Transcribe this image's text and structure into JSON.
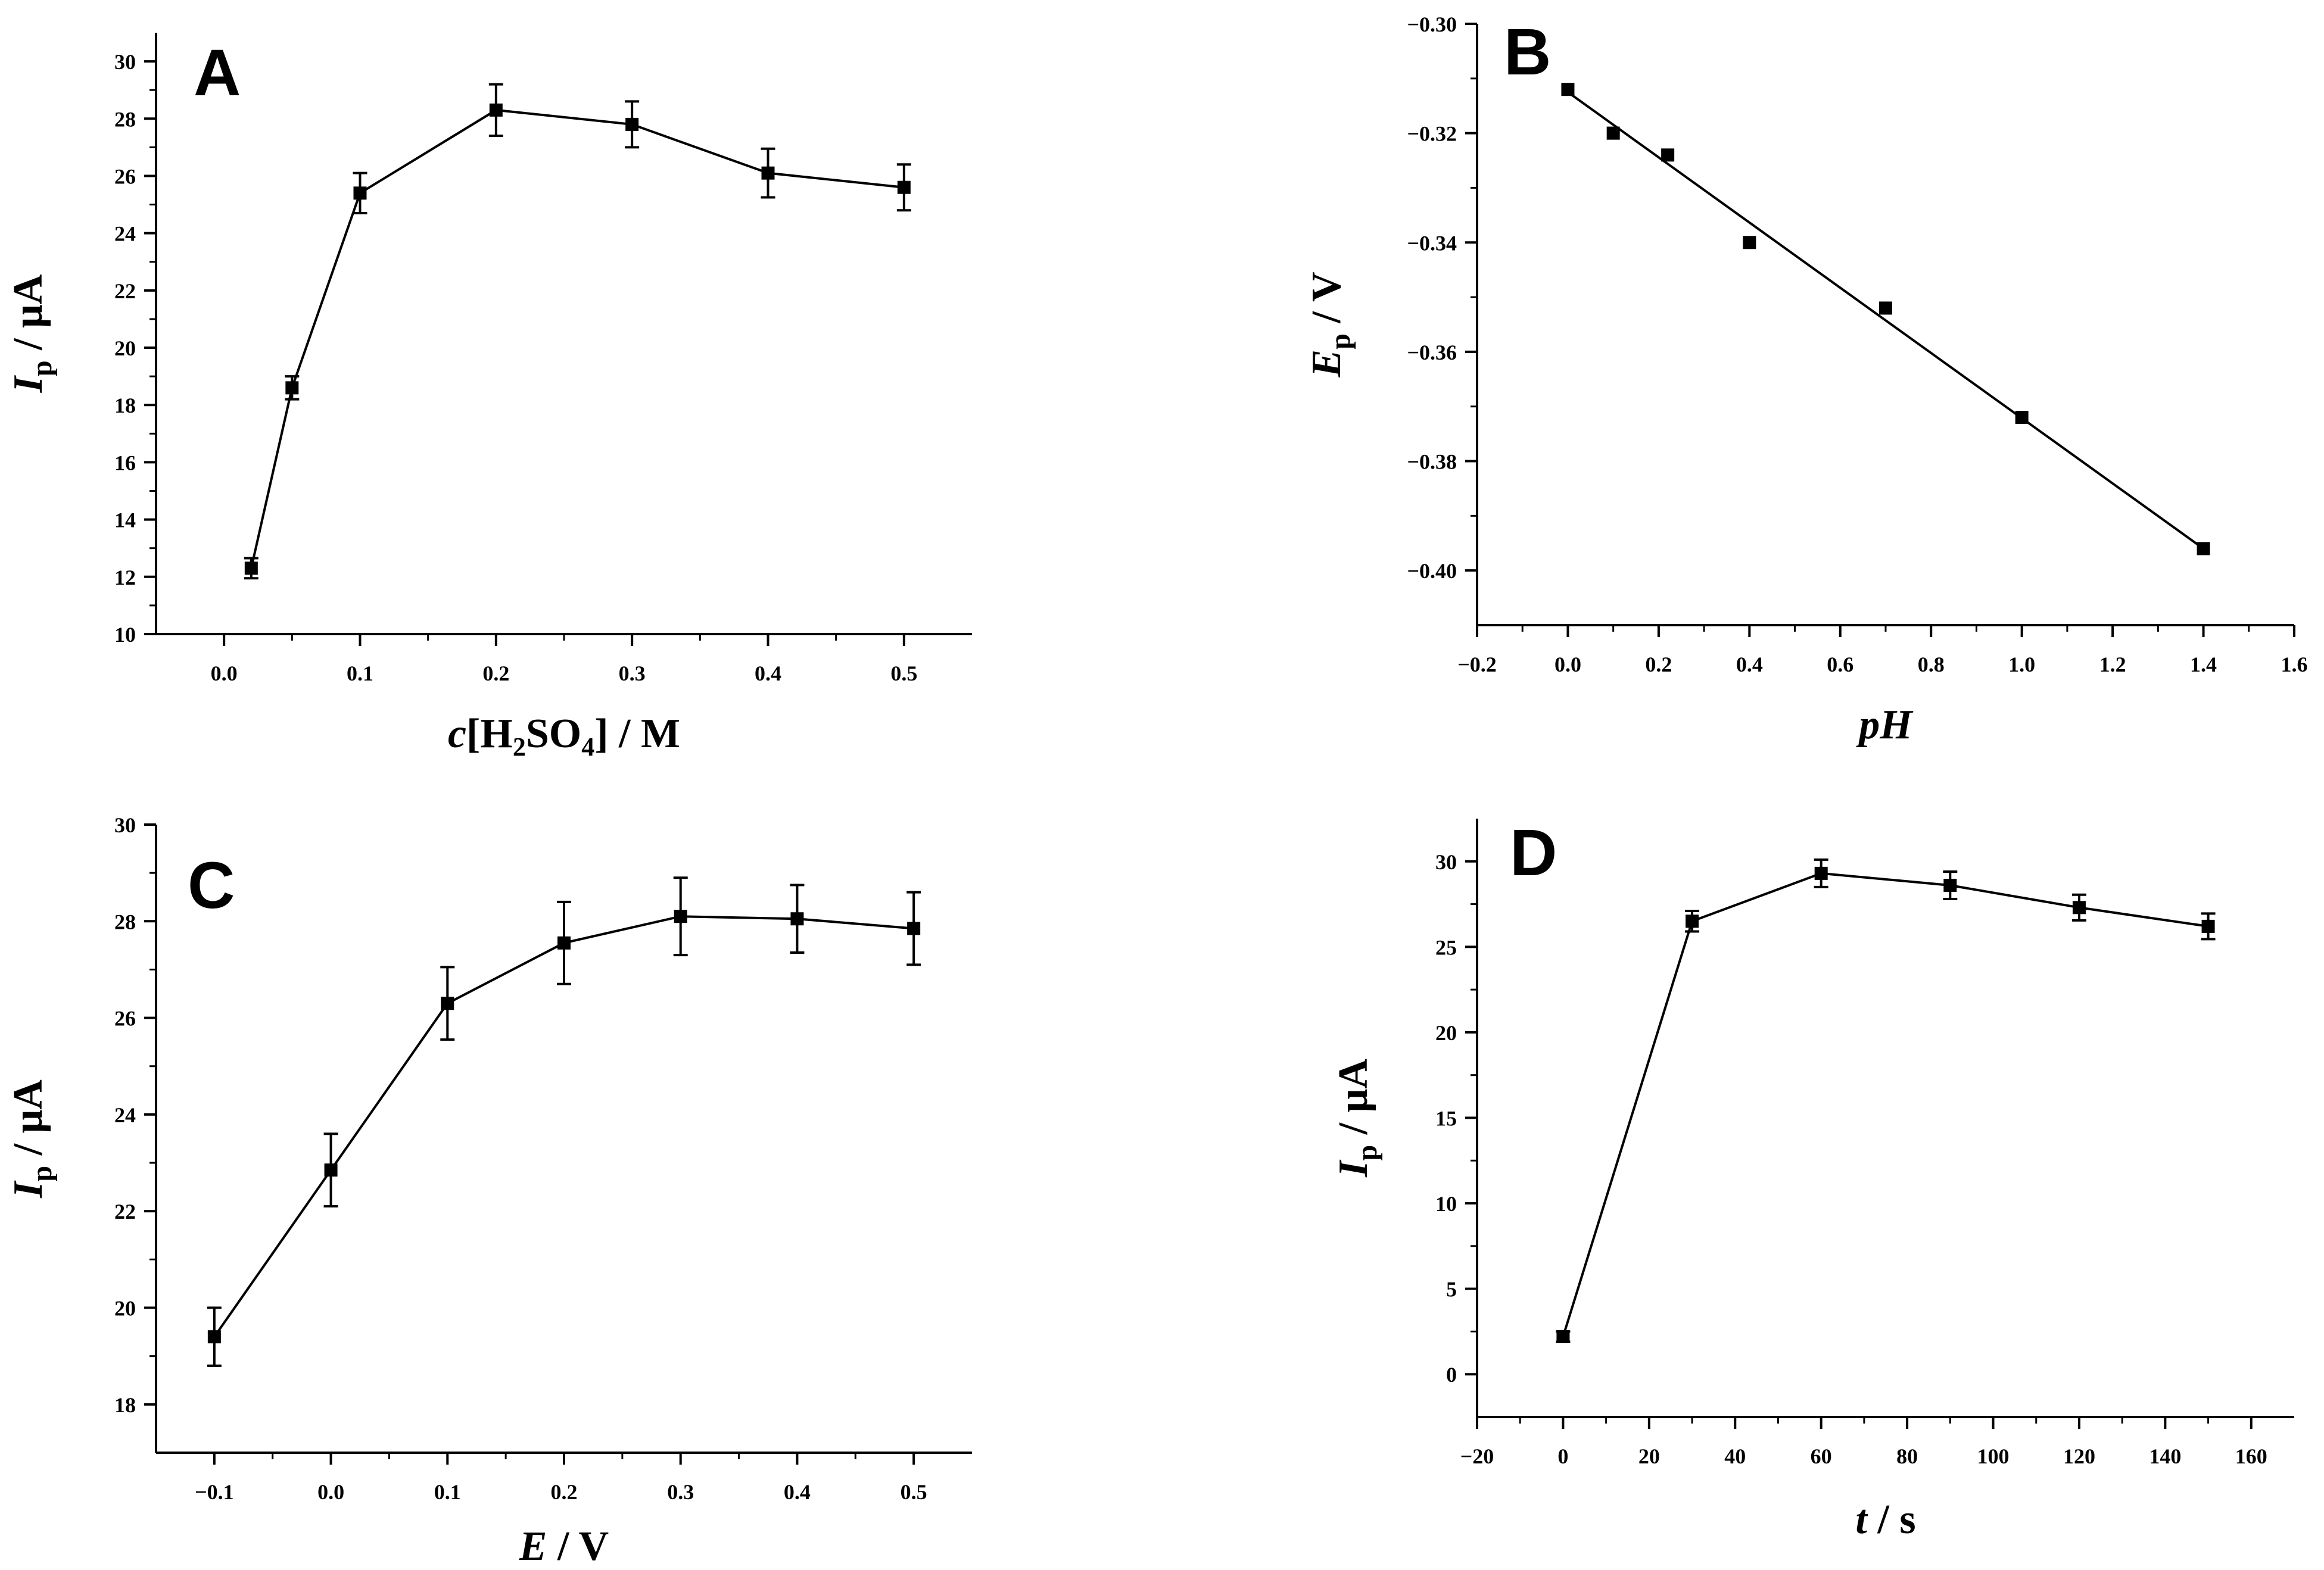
{
  "chart_data": [
    {
      "type": "line",
      "panel_label": "A",
      "xlabel": "c[H2SO4] / M",
      "ylabel": "Ip / μA",
      "xlim": [
        -0.05,
        0.55
      ],
      "ylim": [
        10,
        31
      ],
      "xticks": [
        0.0,
        0.1,
        0.2,
        0.3,
        0.4,
        0.5
      ],
      "xtick_labels": [
        "0.0",
        "0.1",
        "0.2",
        "0.3",
        "0.4",
        "0.5"
      ],
      "yticks": [
        10,
        12,
        14,
        16,
        18,
        20,
        22,
        24,
        26,
        28,
        30
      ],
      "ytick_labels": [
        "10",
        "12",
        "14",
        "16",
        "18",
        "20",
        "22",
        "24",
        "26",
        "28",
        "30"
      ],
      "x": [
        0.02,
        0.05,
        0.1,
        0.2,
        0.3,
        0.4,
        0.5
      ],
      "y": [
        12.3,
        18.6,
        25.4,
        28.3,
        27.8,
        26.1,
        25.6
      ],
      "yerr": [
        0.35,
        0.4,
        0.7,
        0.9,
        0.8,
        0.85,
        0.8
      ],
      "marker": "square",
      "grid": false
    },
    {
      "type": "scatter",
      "panel_label": "B",
      "xlabel": "pH",
      "ylabel": "Ep / V",
      "xlim": [
        -0.2,
        1.6
      ],
      "ylim": [
        -0.41,
        -0.3
      ],
      "xticks": [
        -0.2,
        0.0,
        0.2,
        0.4,
        0.6,
        0.8,
        1.0,
        1.2,
        1.4,
        1.6
      ],
      "xtick_labels": [
        "−0.2",
        "0.0",
        "0.2",
        "0.4",
        "0.6",
        "0.8",
        "1.0",
        "1.2",
        "1.4",
        "1.6"
      ],
      "yticks": [
        -0.3,
        -0.32,
        -0.34,
        -0.36,
        -0.38,
        -0.4
      ],
      "ytick_labels": [
        "−0.30",
        "−0.32",
        "−0.34",
        "−0.36",
        "−0.38",
        "−0.40"
      ],
      "x": [
        0.0,
        0.1,
        0.22,
        0.4,
        0.7,
        1.0,
        1.4
      ],
      "y": [
        -0.312,
        -0.32,
        -0.324,
        -0.34,
        -0.352,
        -0.372,
        -0.396
      ],
      "fit_line": {
        "x": [
          0.0,
          1.4
        ],
        "y": [
          -0.3125,
          -0.396
        ]
      },
      "marker": "square",
      "grid": false
    },
    {
      "type": "line",
      "panel_label": "C",
      "xlabel": "E / V",
      "ylabel": "Ip / μA",
      "xlim": [
        -0.15,
        0.55
      ],
      "ylim": [
        17.0,
        30.0
      ],
      "xticks": [
        -0.1,
        0.0,
        0.1,
        0.2,
        0.3,
        0.4,
        0.5
      ],
      "xtick_labels": [
        "−0.1",
        "0.0",
        "0.1",
        "0.2",
        "0.3",
        "0.4",
        "0.5"
      ],
      "yticks": [
        18,
        20,
        22,
        24,
        26,
        28,
        30
      ],
      "ytick_labels": [
        "18",
        "20",
        "22",
        "24",
        "26",
        "28",
        "30"
      ],
      "x": [
        -0.1,
        0.0,
        0.1,
        0.2,
        0.3,
        0.4,
        0.5
      ],
      "y": [
        19.4,
        22.85,
        26.3,
        27.55,
        28.1,
        28.05,
        27.85
      ],
      "yerr": [
        0.6,
        0.75,
        0.75,
        0.85,
        0.8,
        0.7,
        0.75
      ],
      "marker": "square",
      "grid": false
    },
    {
      "type": "line",
      "panel_label": "D",
      "xlabel": "t / s",
      "ylabel": "Ip / μA",
      "xlim": [
        -20,
        170
      ],
      "ylim": [
        -2.5,
        32.5
      ],
      "xticks": [
        -20,
        0,
        20,
        40,
        60,
        80,
        100,
        120,
        140,
        160
      ],
      "xtick_labels": [
        "−20",
        "0",
        "20",
        "40",
        "60",
        "80",
        "100",
        "120",
        "140",
        "160"
      ],
      "yticks": [
        0,
        5,
        10,
        15,
        20,
        25,
        30
      ],
      "ytick_labels": [
        "0",
        "5",
        "10",
        "15",
        "20",
        "25",
        "30"
      ],
      "x": [
        0,
        30,
        60,
        90,
        120,
        150
      ],
      "y": [
        2.2,
        26.5,
        29.3,
        28.6,
        27.3,
        26.2
      ],
      "yerr": [
        0.3,
        0.6,
        0.8,
        0.8,
        0.75,
        0.75
      ],
      "marker": "square",
      "grid": false
    }
  ]
}
